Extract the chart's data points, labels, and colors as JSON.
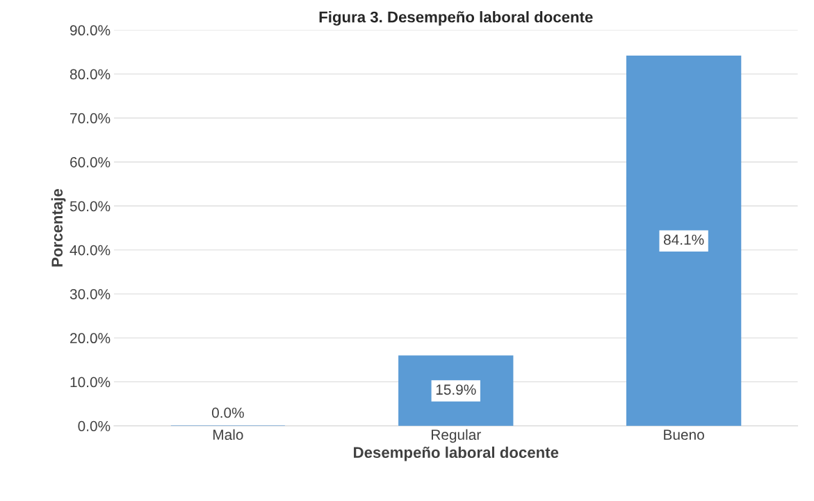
{
  "chart_data": {
    "type": "bar",
    "title": "Figura 3. Desempeño laboral docente",
    "xlabel": "Desempeño laboral docente",
    "ylabel": "Porcentaje",
    "categories": [
      "Malo",
      "Regular",
      "Bueno"
    ],
    "values": [
      0.0,
      15.9,
      84.1
    ],
    "color": "#5b9bd5",
    "value_labels": [
      "0.0%",
      "15.9%",
      "84.1%"
    ],
    "ylim": [
      0,
      90
    ],
    "yticks": [
      {
        "value": 0,
        "label": "0.0%"
      },
      {
        "value": 10,
        "label": "10.0%"
      },
      {
        "value": 20,
        "label": "20.0%"
      },
      {
        "value": 30,
        "label": "30.0%"
      },
      {
        "value": 40,
        "label": "40.0%"
      },
      {
        "value": 50,
        "label": "50.0%"
      },
      {
        "value": 60,
        "label": "60.0%"
      },
      {
        "value": 70,
        "label": "70.0%"
      },
      {
        "value": 80,
        "label": "80.0%"
      },
      {
        "value": 90,
        "label": "90.0%"
      }
    ],
    "grid": "y"
  }
}
